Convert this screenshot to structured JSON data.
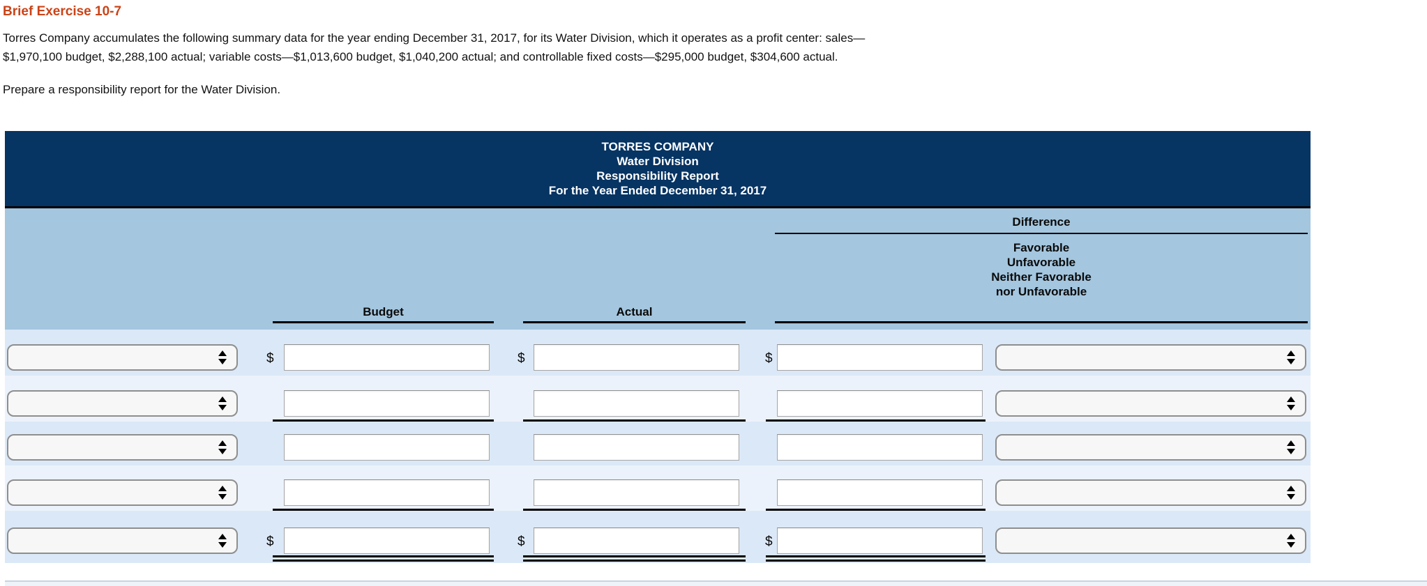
{
  "exercise": {
    "title": "Brief Exercise 10-7",
    "paragraph_lines": [
      "Torres Company accumulates the following summary data for the year ending December 31, 2017, for its Water Division, which it operates as a profit center: sales—",
      "$1,970,100 budget, $2,288,100 actual; variable costs—$1,013,600 budget, $1,040,200 actual; and controllable fixed costs—$295,000 budget, $304,600 actual."
    ],
    "instruction": "Prepare a responsibility report for the Water Division."
  },
  "report": {
    "title_lines": [
      "TORRES COMPANY",
      "Water Division",
      "Responsibility Report",
      "For the Year Ended December 31, 2017"
    ],
    "columns": {
      "budget": "Budget",
      "actual": "Actual",
      "difference": "Difference",
      "difference_sub": [
        "Favorable",
        "Unfavorable",
        "Neither Favorable",
        "nor Unfavorable"
      ]
    },
    "currency_symbol": "$",
    "rows": [
      {
        "label": "",
        "budget": "",
        "actual": "",
        "difference": "",
        "difference_type": "",
        "has_dollar": true,
        "rule": "none"
      },
      {
        "label": "",
        "budget": "",
        "actual": "",
        "difference": "",
        "difference_type": "",
        "has_dollar": false,
        "rule": "single"
      },
      {
        "label": "",
        "budget": "",
        "actual": "",
        "difference": "",
        "difference_type": "",
        "has_dollar": false,
        "rule": "none"
      },
      {
        "label": "",
        "budget": "",
        "actual": "",
        "difference": "",
        "difference_type": "",
        "has_dollar": false,
        "rule": "single"
      },
      {
        "label": "",
        "budget": "",
        "actual": "",
        "difference": "",
        "difference_type": "",
        "has_dollar": true,
        "rule": "double"
      }
    ]
  },
  "colors": {
    "exercise_title": "#cb4317",
    "banner_bg": "#063463",
    "banner_text": "#ffffff",
    "column_header_bg": "#a4c6df",
    "row_shade_dark": "#dbe8f7",
    "row_shade_light": "#ecf2fb",
    "rule_line": "#000000"
  }
}
